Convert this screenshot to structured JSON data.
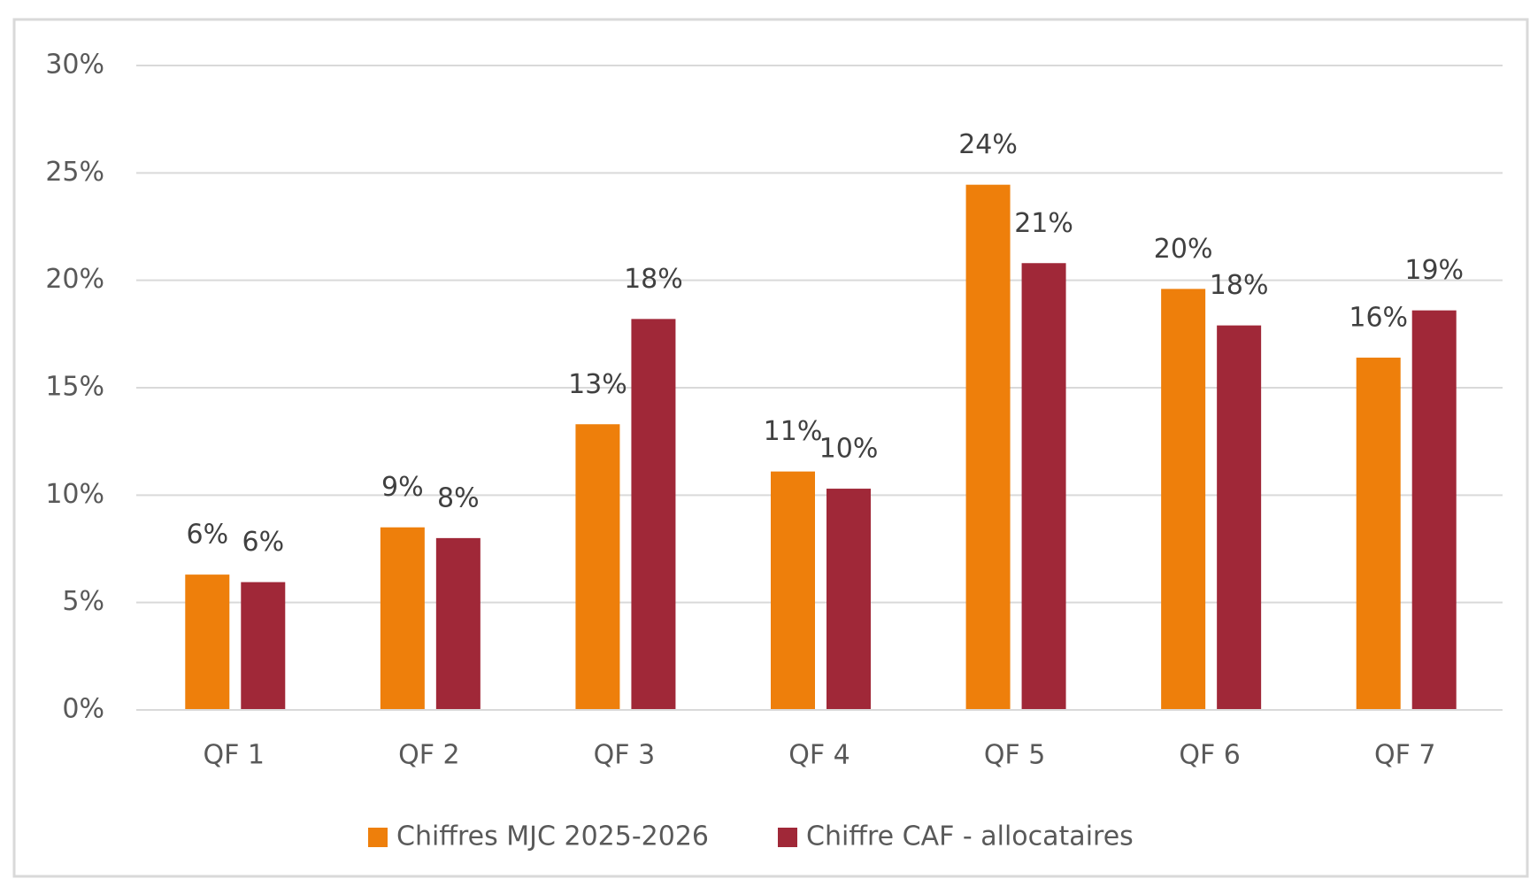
{
  "chart_data": {
    "type": "bar",
    "categories": [
      "QF 1",
      "QF 2",
      "QF 3",
      "QF 4",
      "QF 5",
      "QF 6",
      "QF 7"
    ],
    "series": [
      {
        "name": "Chiffres MJC 2025-2026",
        "color": "#ee7f0b",
        "values": [
          6.3,
          8.5,
          13.3,
          11.1,
          24.45,
          19.6,
          16.4
        ],
        "value_labels": [
          "6%",
          "9%",
          "13%",
          "11%",
          "24%",
          "20%",
          "16%"
        ]
      },
      {
        "name": "Chiffre CAF - allocataires",
        "color": "#a02838",
        "values": [
          5.95,
          8.0,
          18.2,
          10.3,
          20.8,
          17.9,
          18.6
        ],
        "value_labels": [
          "6%",
          "8%",
          "18%",
          "10%",
          "21%",
          "18%",
          "19%"
        ]
      }
    ],
    "ylim": [
      0,
      30
    ],
    "yticks": [
      {
        "value": 0,
        "label": "0%"
      },
      {
        "value": 5,
        "label": "5%"
      },
      {
        "value": 10,
        "label": "10%"
      },
      {
        "value": 15,
        "label": "15%"
      },
      {
        "value": 20,
        "label": "20%"
      },
      {
        "value": 25,
        "label": "25%"
      },
      {
        "value": 30,
        "label": "30%"
      }
    ],
    "grid": true,
    "legend": "bottom"
  }
}
